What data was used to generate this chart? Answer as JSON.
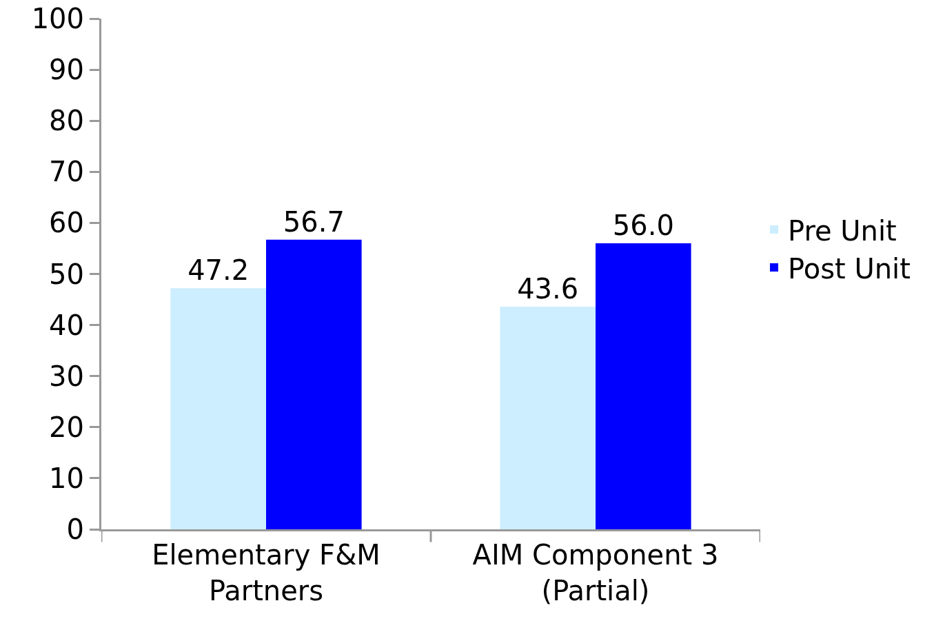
{
  "chart_data": {
    "type": "bar",
    "categories": [
      "Elementary F&M\nPartners",
      "AIM Component 3\n(Partial)"
    ],
    "series": [
      {
        "name": "Pre Unit",
        "color": "#cceeff",
        "values": [
          47.2,
          43.6
        ],
        "value_labels": [
          "47.2",
          "43.6"
        ]
      },
      {
        "name": "Post Unit",
        "color": "#0000ff",
        "values": [
          56.7,
          56.0
        ],
        "value_labels": [
          "56.7",
          "56.0"
        ]
      }
    ],
    "ylim": [
      0,
      100
    ],
    "yticks": [
      0,
      10,
      20,
      30,
      40,
      50,
      60,
      70,
      80,
      90,
      100
    ],
    "grid": false,
    "legend": "right"
  }
}
